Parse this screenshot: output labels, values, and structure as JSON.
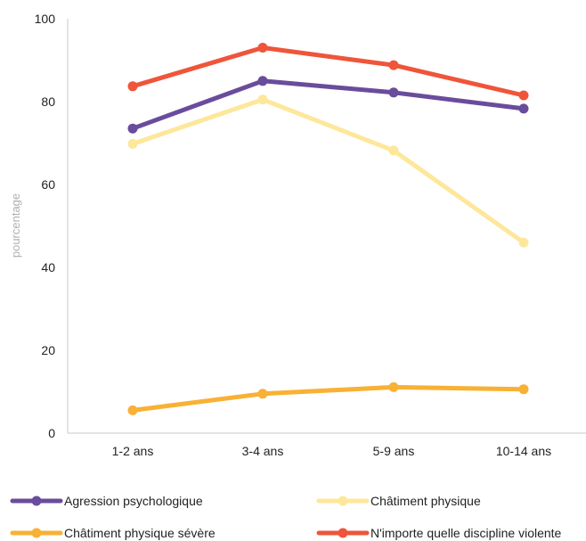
{
  "chart_data": {
    "type": "line",
    "categories": [
      "1-2 ans",
      "3-4 ans",
      "5-9 ans",
      "10-14 ans"
    ],
    "ylabel": "pourcentage",
    "ylim": [
      0,
      100
    ],
    "yticks": [
      0,
      20,
      40,
      60,
      80,
      100
    ],
    "grid": false,
    "legend_position": "bottom",
    "series": [
      {
        "name": "N'importe quelle discipline violente",
        "color": "#ef553a",
        "values": [
          83.7,
          93,
          88.8,
          81.5
        ]
      },
      {
        "name": "Agression psychologique",
        "color": "#6a4c9c",
        "values": [
          73.5,
          85,
          82.2,
          78.3
        ]
      },
      {
        "name": "Châtiment physique",
        "color": "#fde79a",
        "values": [
          69.8,
          80.5,
          68.2,
          46
        ]
      },
      {
        "name": "Châtiment physique sévère",
        "color": "#f8b135",
        "values": [
          5.5,
          9.5,
          11.1,
          10.6
        ]
      }
    ],
    "legend_order": [
      1,
      2,
      3,
      0
    ]
  }
}
